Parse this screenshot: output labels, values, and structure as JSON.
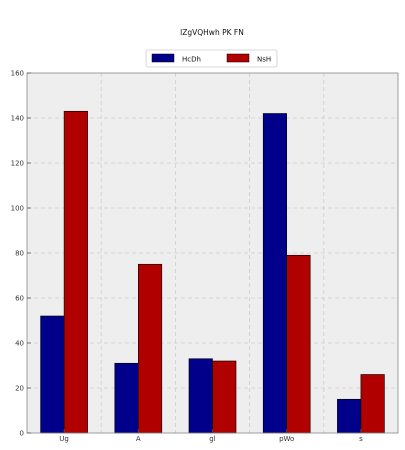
{
  "chart_data": {
    "type": "bar",
    "title": "lZgVQHwh PK FN",
    "xlabel": "",
    "ylabel": "",
    "categories": [
      "Ug",
      "A",
      "gl",
      "pWo",
      "s"
    ],
    "series": [
      {
        "name": "HcDh",
        "values": [
          52,
          31,
          33,
          142,
          15
        ],
        "color": "#00008b"
      },
      {
        "name": "NsH",
        "values": [
          143,
          75,
          32,
          79,
          26
        ],
        "color": "#b00000"
      }
    ],
    "ylim": [
      0,
      160
    ],
    "yticks": [
      0,
      20,
      40,
      60,
      80,
      100,
      120,
      140,
      160
    ],
    "grid": true,
    "legend": "top-center",
    "background": "#eeeeee"
  }
}
